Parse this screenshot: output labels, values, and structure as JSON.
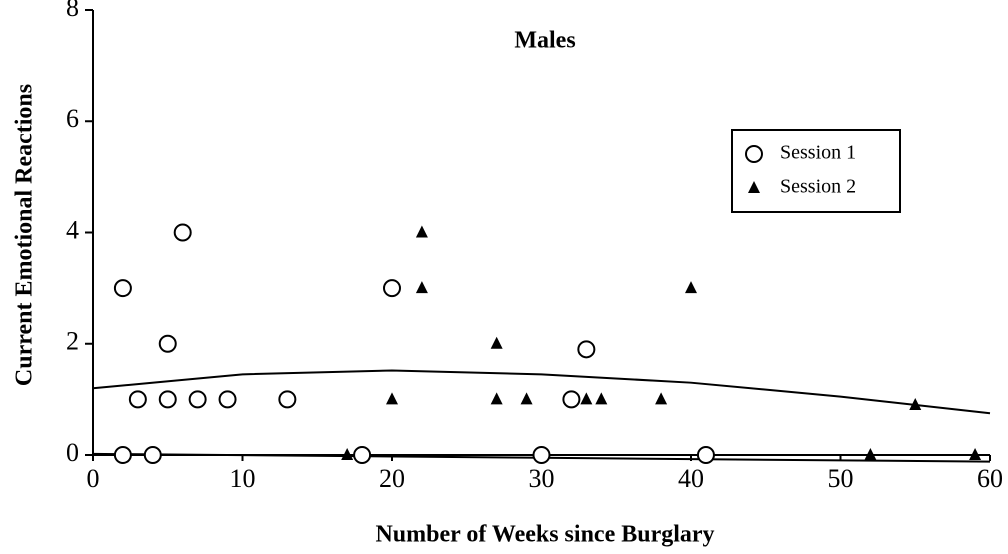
{
  "chart_data": {
    "type": "scatter",
    "title": "Males",
    "xlabel": "Number of Weeks since Burglary",
    "ylabel": "Current Emotional Reactions",
    "xlim": [
      0,
      60
    ],
    "ylim": [
      0,
      8
    ],
    "xticks": [
      0,
      10,
      20,
      30,
      40,
      50,
      60
    ],
    "yticks": [
      0,
      2,
      4,
      6,
      8
    ],
    "legend": "upper right",
    "series": [
      {
        "name": "Session 1",
        "marker": "circle",
        "color": "#000000",
        "x": [
          2,
          2,
          3,
          4,
          5,
          5,
          6,
          7,
          9,
          13,
          18,
          20,
          30,
          32,
          33,
          41
        ],
        "values": [
          3,
          0,
          1,
          0,
          2,
          1,
          4,
          1,
          1,
          1,
          0,
          3,
          0,
          1,
          1.9,
          0
        ]
      },
      {
        "name": "Session 2",
        "marker": "triangle",
        "color": "#000000",
        "x": [
          17,
          20,
          22,
          22,
          27,
          27,
          29,
          33,
          34,
          38,
          40,
          52,
          55,
          59
        ],
        "values": [
          0,
          1,
          4,
          3,
          2,
          1,
          1,
          1,
          1,
          1,
          3,
          0,
          0.9,
          0
        ]
      }
    ],
    "fits": [
      {
        "x": [
          0,
          10,
          20,
          30,
          40,
          50,
          60
        ],
        "values": [
          1.2,
          1.45,
          1.52,
          1.45,
          1.3,
          1.05,
          0.75
        ]
      },
      {
        "x": [
          0,
          30,
          60
        ],
        "values": [
          0.02,
          -0.05,
          -0.12
        ]
      }
    ]
  }
}
